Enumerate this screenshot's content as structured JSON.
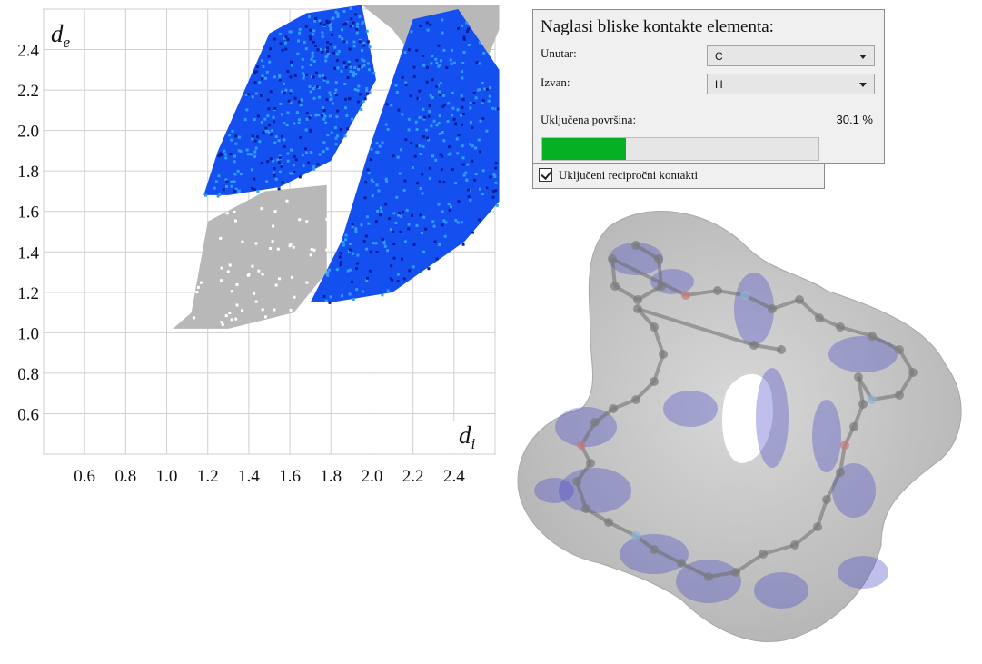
{
  "chart_data": {
    "type": "heatmap",
    "title": "",
    "xlabel": "d",
    "xlabel_sub": "i",
    "ylabel": "d",
    "ylabel_sub": "e",
    "xlim": [
      0.4,
      2.6
    ],
    "ylim": [
      0.4,
      2.6
    ],
    "x_ticks": [
      "0.6",
      "0.8",
      "1.0",
      "1.2",
      "1.4",
      "1.6",
      "1.8",
      "2.0",
      "2.2",
      "2.4"
    ],
    "x_tick_values": [
      0.6,
      0.8,
      1.0,
      1.2,
      1.4,
      1.6,
      1.8,
      2.0,
      2.2,
      2.4
    ],
    "y_ticks": [
      "0.6",
      "0.8",
      "1.0",
      "1.2",
      "1.4",
      "1.6",
      "1.8",
      "2.0",
      "2.2",
      "2.4"
    ],
    "y_tick_values": [
      0.6,
      0.8,
      1.0,
      1.2,
      1.4,
      1.6,
      1.8,
      2.0,
      2.2,
      2.4
    ],
    "grid": true,
    "colors": {
      "background_points": "#b8b8b8",
      "highlight_dense": "#2e9bff",
      "highlight": "#1450f0",
      "highlight_sparse": "#0a1e9c"
    },
    "regions": {
      "gray_lower": [
        [
          1.03,
          1.02
        ],
        [
          1.12,
          1.1
        ],
        [
          1.2,
          1.55
        ],
        [
          1.48,
          1.7
        ],
        [
          1.78,
          1.73
        ],
        [
          1.78,
          1.3
        ],
        [
          1.62,
          1.1
        ],
        [
          1.3,
          1.02
        ]
      ],
      "gray_upper": [
        [
          1.95,
          2.62
        ],
        [
          2.1,
          2.5
        ],
        [
          2.25,
          2.3
        ],
        [
          2.5,
          2.2
        ],
        [
          2.62,
          2.5
        ],
        [
          2.62,
          2.62
        ]
      ],
      "blue_left_wing": [
        [
          1.18,
          1.68
        ],
        [
          1.25,
          1.9
        ],
        [
          1.5,
          2.48
        ],
        [
          1.68,
          2.58
        ],
        [
          1.95,
          2.62
        ],
        [
          2.02,
          2.25
        ],
        [
          1.8,
          1.85
        ],
        [
          1.55,
          1.72
        ],
        [
          1.3,
          1.68
        ]
      ],
      "blue_right_wing": [
        [
          1.7,
          1.15
        ],
        [
          1.85,
          1.45
        ],
        [
          2.0,
          1.95
        ],
        [
          2.2,
          2.55
        ],
        [
          2.42,
          2.6
        ],
        [
          2.62,
          2.3
        ],
        [
          2.62,
          1.65
        ],
        [
          2.45,
          1.45
        ],
        [
          2.1,
          1.2
        ],
        [
          1.8,
          1.15
        ]
      ]
    }
  },
  "panel": {
    "title": "Naglasi bliske kontakte elementa:",
    "inside_label": "Unutar:",
    "inside_value": "C",
    "outside_label": "Izvan:",
    "outside_value": "H",
    "surface_label": "Uključena površina:",
    "surface_percent_text": "30.1 %",
    "surface_fraction": 0.301,
    "progress_color": "#06b025",
    "reciprocal_label": "Uključeni recipročni kontakti",
    "reciprocal_checked": true
  },
  "surface_view": {
    "surface_color": "#c4c4c4",
    "contact_highlight_color": "#4848c8"
  }
}
